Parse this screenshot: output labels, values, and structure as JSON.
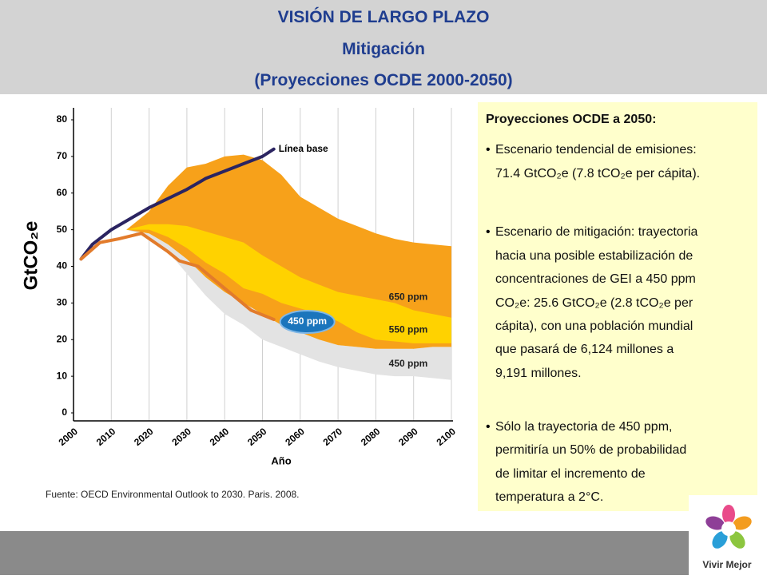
{
  "header": {
    "lines": [
      "VISIÓN DE LARGO PLAZO",
      "Mitigación",
      "(Proyecciones OCDE 2000-2050)"
    ]
  },
  "chart_data": {
    "type": "band-line",
    "ylabel": "GtCO₂e",
    "xlabel": "Año",
    "xlim": [
      2000,
      2100
    ],
    "xticks": [
      2000,
      2010,
      2020,
      2030,
      2040,
      2050,
      2060,
      2070,
      2080,
      2090,
      2100
    ],
    "ylim": [
      0,
      80
    ],
    "yticks": [
      0,
      10,
      20,
      30,
      40,
      50,
      60,
      70,
      80
    ],
    "grid": true,
    "band_x": [
      2014,
      2020,
      2025,
      2030,
      2035,
      2040,
      2045,
      2050,
      2055,
      2060,
      2065,
      2070,
      2075,
      2080,
      2085,
      2090,
      2095,
      2100
    ],
    "bands": [
      {
        "name": "450 ppm",
        "color": "#e3e3e3",
        "upper": [
          50,
          50,
          48,
          45,
          41,
          38,
          34,
          32,
          27,
          23,
          20,
          18.5,
          18,
          17.5,
          17.5,
          17.5,
          18,
          18
        ],
        "lower": [
          50,
          48,
          44,
          38,
          32,
          27,
          24,
          20,
          18,
          16,
          14,
          12.5,
          11.5,
          10.5,
          10,
          10,
          9.5,
          9
        ]
      },
      {
        "name": "650 ppm",
        "color": "#f7a11a",
        "upper": [
          50,
          55,
          62,
          67,
          68,
          70,
          70.5,
          69,
          65,
          59,
          56,
          53,
          51,
          49,
          47.5,
          46.5,
          46,
          45.5
        ],
        "lower": [
          50,
          49,
          46,
          42,
          37,
          33,
          30,
          27,
          24,
          22,
          20,
          18.5,
          18,
          17.5,
          17.5,
          17.5,
          18,
          18
        ]
      },
      {
        "name": "550 ppm",
        "color": "#ffd200",
        "upper": [
          50,
          51.5,
          51.5,
          51,
          49.5,
          48,
          46.5,
          43,
          40,
          37,
          35,
          33,
          32,
          31,
          30,
          28,
          27,
          26
        ],
        "lower": [
          50,
          50,
          48,
          45,
          41,
          38,
          34,
          32.5,
          30,
          28.5,
          27,
          25,
          22,
          20,
          19.5,
          19,
          19,
          19
        ]
      }
    ],
    "series": [
      {
        "name": "Línea base",
        "color": "#2b2461",
        "x": [
          2002,
          2005,
          2010,
          2020,
          2030,
          2035,
          2040,
          2045,
          2050,
          2053
        ],
        "values": [
          42,
          46,
          50,
          56,
          61,
          64,
          66,
          68,
          70,
          72
        ]
      },
      {
        "name": "450 ppm",
        "color": "#e27b2b",
        "x": [
          2002,
          2007,
          2012,
          2018,
          2025,
          2028,
          2033,
          2040,
          2047,
          2053
        ],
        "values": [
          42,
          46.5,
          47.5,
          49,
          44,
          41.5,
          40,
          34,
          28,
          25.5
        ]
      }
    ]
  },
  "source": "Fuente: OECD Environmental Outlook to 2030. Paris. 2008.",
  "panel": {
    "title": "Proyecciones OCDE a 2050:",
    "bullets": [
      [
        "Escenario tendencial de emisiones:",
        "71.4 GtCO₂e  (7.8 tCO₂e per cápita)."
      ],
      [
        "Escenario de mitigación: trayectoria",
        "hacia una posible estabilización de",
        "concentraciones de GEI a 450 ppm",
        "CO₂e: 25.6 GtCO₂e  (2.8 tCO₂e per",
        "cápita), con una población mundial",
        "que pasará de 6,124 millones a",
        "9,191 millones."
      ],
      [
        "Sólo la trayectoria de 450 ppm,",
        "permitiría un 50% de probabilidad",
        "de limitar el incremento de",
        "temperatura a 2°C."
      ]
    ]
  },
  "logo": "Vivir Mejor"
}
